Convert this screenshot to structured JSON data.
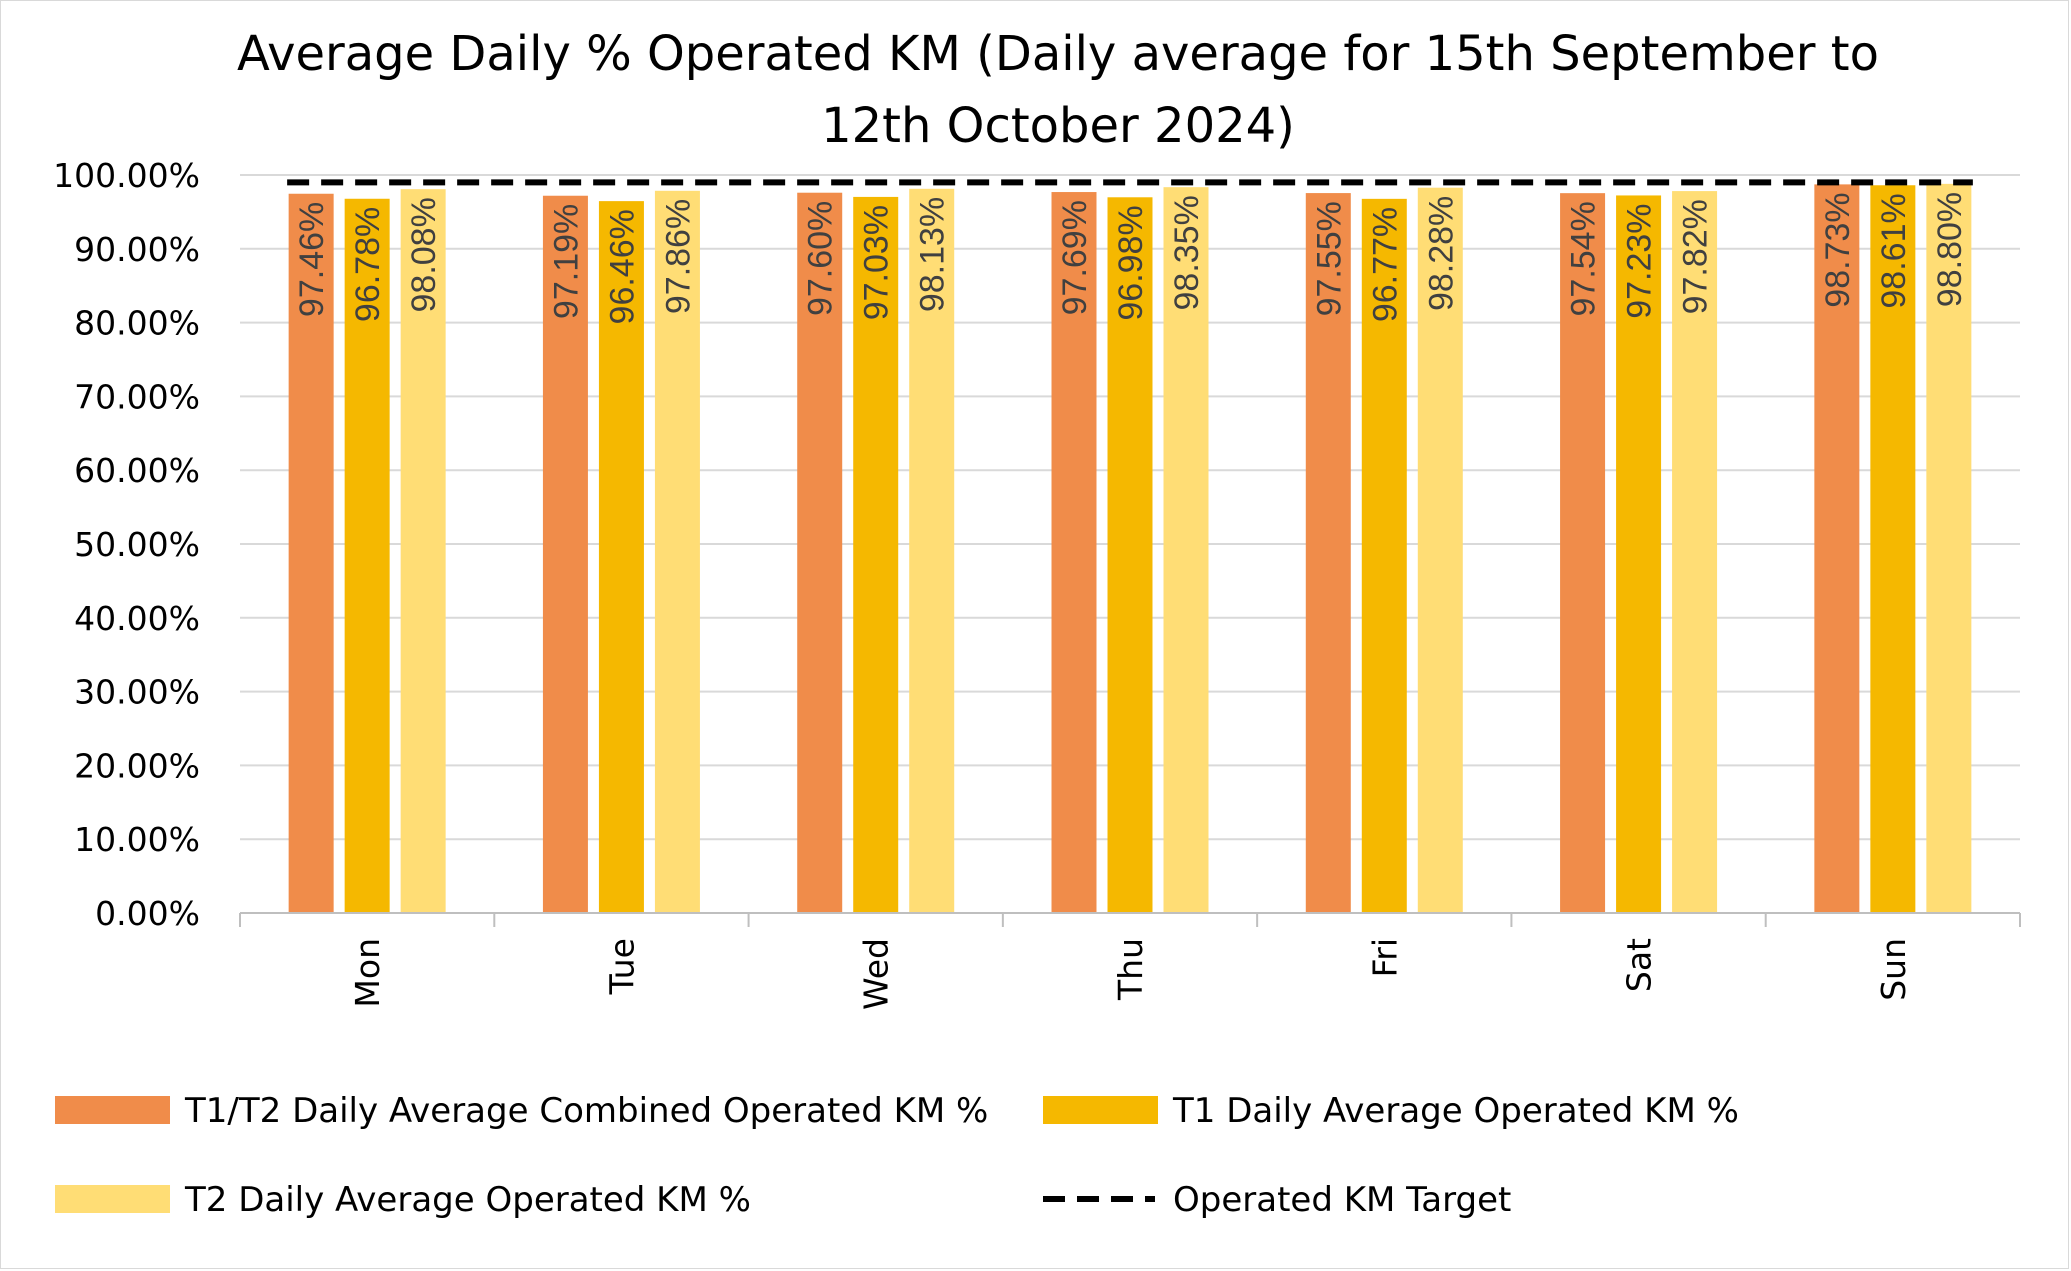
{
  "chart_data": {
    "type": "bar",
    "title": "Average Daily % Operated KM (Daily average for 15th September to 12th October 2024)",
    "title_lines": [
      "Average Daily % Operated KM (Daily average for 15th September to",
      "12th October 2024)"
    ],
    "categories": [
      "Mon",
      "Tue",
      "Wed",
      "Thu",
      "Fri",
      "Sat",
      "Sun"
    ],
    "series": [
      {
        "name": "T1/T2 Daily Average Combined Operated KM %",
        "color": "#f08c4a",
        "values": [
          97.46,
          97.19,
          97.6,
          97.69,
          97.55,
          97.54,
          98.73
        ],
        "labels": [
          "97.46%",
          "97.19%",
          "97.60%",
          "97.69%",
          "97.55%",
          "97.54%",
          "98.73%"
        ]
      },
      {
        "name": "T1 Daily Average Operated KM %",
        "color": "#f5b800",
        "values": [
          96.78,
          96.46,
          97.03,
          96.98,
          96.77,
          97.23,
          98.61
        ],
        "labels": [
          "96.78%",
          "96.46%",
          "97.03%",
          "96.98%",
          "96.77%",
          "97.23%",
          "98.61%"
        ]
      },
      {
        "name": "T2 Daily Average Operated KM %",
        "color": "#ffdd75",
        "values": [
          98.08,
          97.86,
          98.13,
          98.35,
          98.28,
          97.82,
          98.8
        ],
        "labels": [
          "98.08%",
          "97.86%",
          "98.13%",
          "98.35%",
          "98.28%",
          "97.82%",
          "98.80%"
        ]
      }
    ],
    "target": {
      "name": "Operated KM Target",
      "value": 99,
      "color": "#000000",
      "style": "dashed"
    },
    "y_ticks": [
      "0.00%",
      "10.00%",
      "20.00%",
      "30.00%",
      "40.00%",
      "50.00%",
      "60.00%",
      "70.00%",
      "80.00%",
      "90.00%",
      "100.00%"
    ],
    "ylim": [
      0,
      100
    ],
    "grid": true,
    "legend_position": "bottom",
    "xlabel": "",
    "ylabel": ""
  },
  "colors": {
    "gridline": "#d9d9d9",
    "axis": "#bfbfbf",
    "frame": "#d9d9d9"
  }
}
